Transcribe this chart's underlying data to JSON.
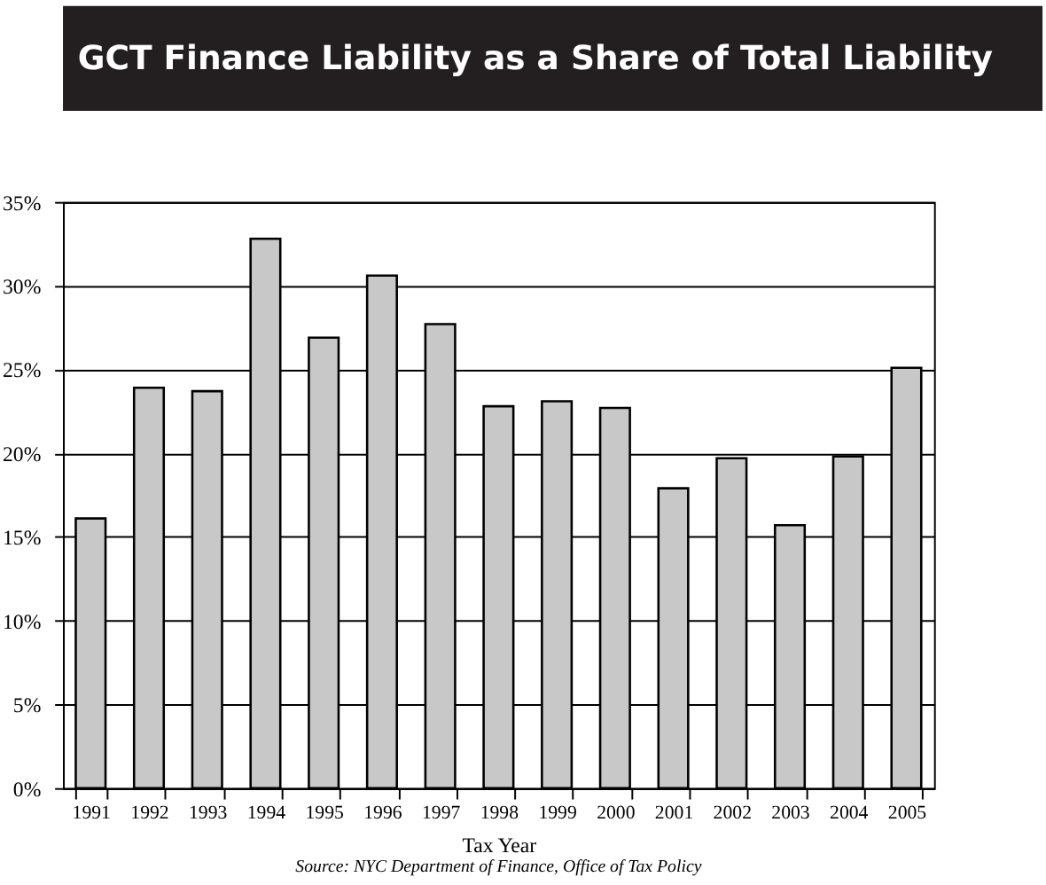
{
  "chart_data": {
    "type": "bar",
    "title": "GCT Finance Liability as a Share of Total Liability",
    "xlabel": "Tax Year",
    "annotations": [
      "Source: NYC Department of Finance, Office of Tax Policy"
    ],
    "categories": [
      "1991",
      "1992",
      "1993",
      "1994",
      "1995",
      "1996",
      "1997",
      "1998",
      "1999",
      "2000",
      "2001",
      "2002",
      "2003",
      "2004",
      "2005"
    ],
    "values": [
      16.1,
      23.9,
      23.7,
      32.8,
      26.9,
      30.6,
      27.7,
      22.8,
      23.1,
      22.7,
      17.9,
      19.7,
      15.7,
      19.8,
      25.1
    ],
    "color": "#c8c8c8",
    "ylim": [
      0,
      35
    ],
    "yticks": [
      {
        "value": 0,
        "label": "0%"
      },
      {
        "value": 5,
        "label": "5%"
      },
      {
        "value": 10,
        "label": "10%"
      },
      {
        "value": 15,
        "label": "15%"
      },
      {
        "value": 20,
        "label": "20%"
      },
      {
        "value": 25,
        "label": "25%"
      },
      {
        "value": 30,
        "label": "30%"
      },
      {
        "value": 35,
        "label": "35%"
      }
    ],
    "grid": "y"
  }
}
